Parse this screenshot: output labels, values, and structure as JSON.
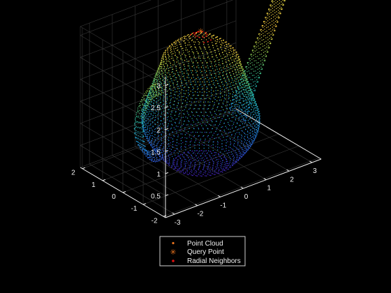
{
  "chart_data": {
    "type": "scatter",
    "subtype": "3d-point-cloud",
    "view": "3d isometric",
    "grid": true,
    "background": "#000000",
    "axes": {
      "x": {
        "ticks": [
          -3,
          -2,
          -1,
          0,
          1,
          2,
          3
        ],
        "labels": [
          "-3",
          "-2",
          "-1",
          "0",
          "1",
          "2",
          "3"
        ],
        "range": [
          -3.4,
          3.4
        ]
      },
      "y": {
        "ticks": [
          -2,
          -1,
          0,
          1,
          2
        ],
        "labels": [
          "-2",
          "-1",
          "0",
          "1",
          "2"
        ],
        "range": [
          -2.1,
          2.1
        ]
      },
      "z": {
        "ticks": [
          0.5,
          1,
          1.5,
          2,
          2.5,
          3
        ],
        "labels": [
          "0.5",
          "1",
          "1.5",
          "2",
          "2.5",
          "3"
        ],
        "range": [
          0,
          3.2
        ]
      }
    },
    "colormap": [
      "#3e1ba8",
      "#2a5bd8",
      "#1d97d4",
      "#28bfa0",
      "#8fc94a",
      "#f2c43a",
      "#f5e44a"
    ],
    "series": [
      {
        "name": "Point Cloud",
        "marker": ".",
        "color_by": "z"
      },
      {
        "name": "Query Point",
        "marker": "*",
        "color": "#e8731e",
        "point": [
          0,
          0,
          3
        ]
      },
      {
        "name": "Radial Neighbors",
        "marker": ".",
        "color": "#e01010",
        "center": [
          0,
          0,
          3
        ],
        "radius": 0.4
      }
    ],
    "legend": {
      "placement": "bottom-center",
      "entries": [
        "Point Cloud",
        "Query Point",
        "Radial Neighbors"
      ]
    }
  }
}
